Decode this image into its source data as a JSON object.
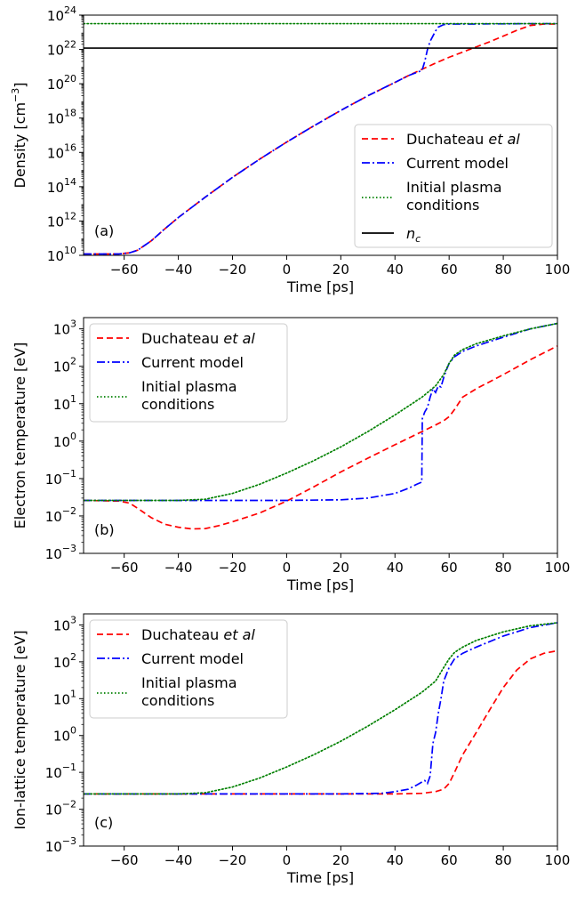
{
  "chart_data": [
    {
      "type": "line",
      "panel_label": "(a)",
      "xlabel": "Time [ps]",
      "ylabel": "Density [cm⁻³]",
      "xlim": [
        -75,
        100
      ],
      "ylim": [
        10000000000.0,
        1e+24
      ],
      "yscale": "log",
      "x_ticks": [
        -60,
        -40,
        -20,
        0,
        20,
        40,
        60,
        80,
        100
      ],
      "y_ticks": [
        {
          "value": 10000000000.0,
          "base": "10",
          "exp": "10"
        },
        {
          "value": 1000000000000.0,
          "base": "10",
          "exp": "12"
        },
        {
          "value": 100000000000000.0,
          "base": "10",
          "exp": "14"
        },
        {
          "value": 1e+16,
          "base": "10",
          "exp": "16"
        },
        {
          "value": 1e+18,
          "base": "10",
          "exp": "18"
        },
        {
          "value": 1e+20,
          "base": "10",
          "exp": "20"
        },
        {
          "value": 1e+22,
          "base": "10",
          "exp": "22"
        },
        {
          "value": 1e+24,
          "base": "10",
          "exp": "24"
        }
      ],
      "legend_position": "lower-right",
      "series": [
        {
          "name": "Duchateau et al",
          "color": "#ff0000",
          "style": "dashed",
          "x": [
            -75,
            -62,
            -58,
            -55,
            -50,
            -45,
            -40,
            -30,
            -20,
            -10,
            0,
            10,
            20,
            30,
            40,
            45,
            50,
            55,
            60,
            65,
            70,
            75,
            80,
            85,
            90,
            95,
            100
          ],
          "y": [
            12000000000.0,
            12000000000.0,
            14000000000.0,
            20000000000.0,
            70000000000.0,
            350000000000.0,
            1600000000000.0,
            25000000000000.0,
            350000000000000.0,
            4000000000000000.0,
            4e+16,
            3.5e+17,
            2.8e+18,
            2e+19,
            1.2e+20,
            3e+20,
            7e+20,
            1.6e+21,
            3.5e+21,
            7e+21,
            1.4e+22,
            2.8e+22,
            6e+22,
            1.3e+23,
            2.5e+23,
            3e+23,
            3e+23
          ]
        },
        {
          "name": "Current model",
          "color": "#0000ff",
          "style": "dashdot",
          "x": [
            -75,
            -62,
            -58,
            -55,
            -50,
            -45,
            -40,
            -30,
            -20,
            -10,
            0,
            10,
            20,
            30,
            40,
            45,
            50,
            51,
            52,
            53,
            54,
            55,
            56,
            58,
            60,
            65,
            70,
            75,
            80,
            90,
            100
          ],
          "y": [
            12000000000.0,
            12000000000.0,
            14000000000.0,
            20000000000.0,
            70000000000.0,
            350000000000.0,
            1600000000000.0,
            25000000000000.0,
            350000000000000.0,
            4000000000000000.0,
            4e+16,
            3.5e+17,
            2.8e+18,
            2e+19,
            1.2e+20,
            3e+20,
            6e+20,
            2e+21,
            1e+22,
            3e+22,
            6e+22,
            1.2e+23,
            2e+23,
            2.8e+23,
            3e+23,
            3e+23,
            3e+23,
            3.1e+23,
            3.1e+23,
            3.2e+23,
            3.2e+23
          ]
        },
        {
          "name": "Initial plasma conditions",
          "color": "#008000",
          "style": "dotted",
          "x": [
            -75,
            100
          ],
          "y": [
            3.2e+23,
            3.2e+23
          ]
        },
        {
          "name": "n_c",
          "color": "#000000",
          "style": "solid",
          "x": [
            -75,
            100
          ],
          "y": [
            1.2e+22,
            1.2e+22
          ]
        }
      ]
    },
    {
      "type": "line",
      "panel_label": "(b)",
      "xlabel": "Time [ps]",
      "ylabel": "Electron temperature [eV]",
      "xlim": [
        -75,
        100
      ],
      "ylim": [
        0.001,
        2000
      ],
      "yscale": "log",
      "x_ticks": [
        -60,
        -40,
        -20,
        0,
        20,
        40,
        60,
        80,
        100
      ],
      "y_ticks": [
        {
          "value": 0.001,
          "base": "10",
          "exp": "−3"
        },
        {
          "value": 0.01,
          "base": "10",
          "exp": "−2"
        },
        {
          "value": 0.1,
          "base": "10",
          "exp": "−1"
        },
        {
          "value": 1,
          "base": "10",
          "exp": "0"
        },
        {
          "value": 10,
          "base": "10",
          "exp": "1"
        },
        {
          "value": 100,
          "base": "10",
          "exp": "2"
        },
        {
          "value": 1000,
          "base": "10",
          "exp": "3"
        }
      ],
      "legend_position": "upper-left",
      "series": [
        {
          "name": "Duchateau et al",
          "color": "#ff0000",
          "style": "dashed",
          "x": [
            -75,
            -62,
            -58,
            -55,
            -50,
            -45,
            -40,
            -35,
            -30,
            -25,
            -20,
            -10,
            0,
            10,
            20,
            30,
            40,
            50,
            55,
            58,
            60,
            62,
            65,
            70,
            80,
            90,
            100
          ],
          "y": [
            0.026,
            0.025,
            0.022,
            0.016,
            0.009,
            0.006,
            0.005,
            0.0045,
            0.0046,
            0.0055,
            0.007,
            0.012,
            0.025,
            0.06,
            0.15,
            0.35,
            0.8,
            1.8,
            2.7,
            3.5,
            4.5,
            7,
            15,
            25,
            60,
            150,
            350
          ]
        },
        {
          "name": "Current model",
          "color": "#0000ff",
          "style": "dashdot",
          "x": [
            -75,
            -40,
            -20,
            0,
            20,
            30,
            40,
            45,
            48,
            49.9,
            50.1,
            51,
            52,
            53,
            54,
            55,
            56,
            57,
            58,
            59,
            60,
            62,
            65,
            70,
            80,
            90,
            100
          ],
          "y": [
            0.026,
            0.026,
            0.026,
            0.026,
            0.027,
            0.03,
            0.04,
            0.055,
            0.07,
            0.08,
            4,
            6,
            8,
            15,
            25,
            20,
            30,
            28,
            50,
            80,
            120,
            180,
            250,
            350,
            600,
            1000,
            1400
          ]
        },
        {
          "name": "Initial plasma conditions",
          "color": "#008000",
          "style": "dotted",
          "x": [
            -75,
            -40,
            -30,
            -20,
            -10,
            0,
            10,
            20,
            30,
            40,
            50,
            55,
            58,
            60,
            62,
            65,
            70,
            80,
            90,
            100
          ],
          "y": [
            0.026,
            0.026,
            0.028,
            0.04,
            0.07,
            0.14,
            0.3,
            0.7,
            1.8,
            5,
            15,
            30,
            60,
            120,
            200,
            280,
            400,
            650,
            1000,
            1400
          ]
        }
      ]
    },
    {
      "type": "line",
      "panel_label": "(c)",
      "xlabel": "Time [ps]",
      "ylabel": "Ion-lattice temperature [eV]",
      "xlim": [
        -75,
        100
      ],
      "ylim": [
        0.001,
        2000
      ],
      "yscale": "log",
      "x_ticks": [
        -60,
        -40,
        -20,
        0,
        20,
        40,
        60,
        80,
        100
      ],
      "y_ticks": [
        {
          "value": 0.001,
          "base": "10",
          "exp": "−3"
        },
        {
          "value": 0.01,
          "base": "10",
          "exp": "−2"
        },
        {
          "value": 0.1,
          "base": "10",
          "exp": "−1"
        },
        {
          "value": 1,
          "base": "10",
          "exp": "0"
        },
        {
          "value": 10,
          "base": "10",
          "exp": "1"
        },
        {
          "value": 100,
          "base": "10",
          "exp": "2"
        },
        {
          "value": 1000,
          "base": "10",
          "exp": "3"
        }
      ],
      "legend_position": "upper-left",
      "series": [
        {
          "name": "Duchateau et al",
          "color": "#ff0000",
          "style": "dashed",
          "x": [
            -75,
            -20,
            0,
            20,
            40,
            50,
            55,
            58,
            60,
            62,
            65,
            70,
            75,
            80,
            85,
            90,
            95,
            100
          ],
          "y": [
            0.026,
            0.026,
            0.026,
            0.026,
            0.026,
            0.027,
            0.03,
            0.035,
            0.05,
            0.1,
            0.3,
            1.2,
            5,
            20,
            60,
            120,
            170,
            200
          ]
        },
        {
          "name": "Current model",
          "color": "#0000ff",
          "style": "dashdot",
          "x": [
            -75,
            -20,
            0,
            20,
            35,
            40,
            45,
            48,
            50,
            51,
            52,
            53,
            54,
            55,
            56,
            57,
            58,
            60,
            62,
            65,
            70,
            80,
            90,
            100
          ],
          "y": [
            0.026,
            0.026,
            0.026,
            0.026,
            0.027,
            0.03,
            0.035,
            0.045,
            0.055,
            0.06,
            0.05,
            0.08,
            0.6,
            1.2,
            4,
            10,
            30,
            70,
            120,
            170,
            250,
            500,
            850,
            1150
          ]
        },
        {
          "name": "Initial plasma conditions",
          "color": "#008000",
          "style": "dotted",
          "x": [
            -75,
            -40,
            -30,
            -20,
            -10,
            0,
            10,
            20,
            30,
            40,
            50,
            55,
            58,
            60,
            62,
            65,
            70,
            80,
            90,
            100
          ],
          "y": [
            0.026,
            0.026,
            0.028,
            0.04,
            0.07,
            0.14,
            0.3,
            0.7,
            1.8,
            5,
            15,
            30,
            70,
            120,
            180,
            250,
            380,
            650,
            950,
            1150
          ]
        }
      ]
    }
  ]
}
